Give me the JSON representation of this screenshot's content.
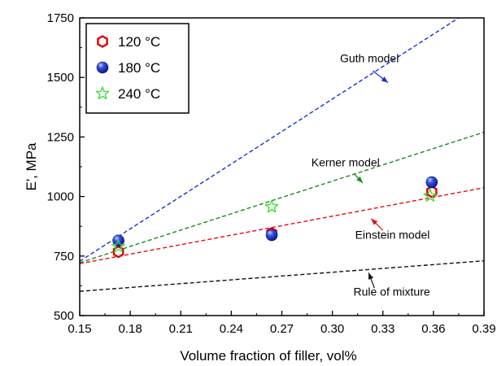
{
  "chart_data": {
    "type": "scatter",
    "title": "",
    "xlabel": "Volume fraction of filler, vol%",
    "ylabel": "E', MPa",
    "xlim": [
      0.15,
      0.39
    ],
    "ylim": [
      500,
      1750
    ],
    "xticks": [
      "0.15",
      "0.18",
      "0.21",
      "0.24",
      "0.27",
      "0.30",
      "0.33",
      "0.36",
      "0.39"
    ],
    "yticks": [
      "500",
      "750",
      "1000",
      "1250",
      "1500",
      "1750"
    ],
    "grid": false,
    "legend_position": "top-left",
    "series": [
      {
        "name": "120 °C",
        "marker": "hexagon",
        "color": "#e00000",
        "x": [
          0.173,
          0.264,
          0.359
        ],
        "y": [
          768,
          845,
          1020
        ]
      },
      {
        "name": "180 °C",
        "marker": "sphere",
        "color": "#1a2fd6",
        "x": [
          0.173,
          0.264,
          0.359
        ],
        "y": [
          815,
          838,
          1060
        ]
      },
      {
        "name": "240 °C",
        "marker": "star",
        "color": "#33dd33",
        "x": [
          0.173,
          0.264,
          0.358
        ],
        "y": [
          790,
          957,
          1003
        ]
      }
    ],
    "models": [
      {
        "name": "Guth model",
        "color": "#1a2fd6",
        "x": [
          0.15,
          0.375
        ],
        "y": [
          728,
          1750
        ]
      },
      {
        "name": "Kerner model",
        "color": "#1a8a1a",
        "x": [
          0.15,
          0.39
        ],
        "y": [
          722,
          1270
        ]
      },
      {
        "name": "Einstein model",
        "color": "#e01010",
        "x": [
          0.15,
          0.39
        ],
        "y": [
          718,
          1037
        ]
      },
      {
        "name": "Rule of mixture",
        "color": "#111111",
        "x": [
          0.15,
          0.39
        ],
        "y": [
          602,
          730
        ]
      }
    ],
    "annotations": [
      {
        "text": "Guth model",
        "target_series": "Guth model",
        "label_xy": [
          0.3045,
          1564
        ],
        "arrow_from": [
          0.324,
          1528
        ],
        "arrow_to": [
          0.333,
          1478
        ]
      },
      {
        "text": "Kerner model",
        "target_series": "Kerner model",
        "label_xy": [
          0.2875,
          1126
        ],
        "arrow_from": [
          0.313,
          1095
        ],
        "arrow_to": [
          0.318,
          1057
        ]
      },
      {
        "text": "Einstein model",
        "target_series": "Einstein model",
        "label_xy": [
          0.3135,
          822
        ],
        "arrow_from": [
          0.33,
          858
        ],
        "arrow_to": [
          0.323,
          907
        ]
      },
      {
        "text": "Rule of mixture",
        "target_series": "Rule of mixture",
        "label_xy": [
          0.3125,
          583
        ],
        "arrow_from": [
          0.325,
          615
        ],
        "arrow_to": [
          0.3215,
          680
        ]
      }
    ]
  }
}
